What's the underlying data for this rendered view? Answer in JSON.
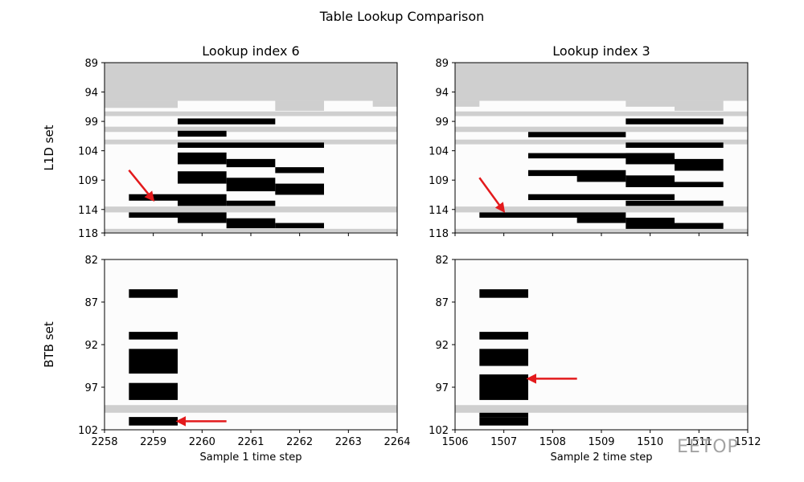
{
  "figure": {
    "title": "Table Lookup Comparison"
  },
  "watermark": {
    "text": "EETOP"
  },
  "chart_data": [
    {
      "type": "heatmap",
      "title": "Lookup index 6",
      "xlabel": "",
      "ylabel": "L1D set",
      "xlim": [
        2258,
        2264
      ],
      "ylim": [
        118,
        89
      ],
      "xticks": [
        2258,
        2259,
        2260,
        2261,
        2262,
        2263,
        2264
      ],
      "yticks": [
        89,
        94,
        99,
        104,
        109,
        114,
        118
      ],
      "gray_regions": [
        {
          "x0": 2258.0,
          "x1": 2264.0,
          "y0": 89.0,
          "y1": 95.5
        },
        {
          "x0": 2258.0,
          "x1": 2259.5,
          "y0": 95.5,
          "y1": 96.7
        },
        {
          "x0": 2261.5,
          "x1": 2262.5,
          "y0": 95.5,
          "y1": 97.2
        },
        {
          "x0": 2263.5,
          "x1": 2264.0,
          "y0": 95.5,
          "y1": 96.5
        },
        {
          "x0": 2258.0,
          "x1": 2264.0,
          "y0": 97.3,
          "y1": 98.1
        },
        {
          "x0": 2258.0,
          "x1": 2264.0,
          "y0": 99.9,
          "y1": 100.8
        },
        {
          "x0": 2258.0,
          "x1": 2264.0,
          "y0": 102.1,
          "y1": 102.9
        },
        {
          "x0": 2258.0,
          "x1": 2264.0,
          "y0": 113.5,
          "y1": 114.5
        },
        {
          "x0": 2258.0,
          "x1": 2264.0,
          "y0": 117.3,
          "y1": 117.9
        }
      ],
      "black_bars": [
        {
          "x0": 2259.5,
          "x1": 2261.5,
          "y0": 98.5,
          "y1": 99.5
        },
        {
          "x0": 2259.5,
          "x1": 2260.5,
          "y0": 100.6,
          "y1": 101.6
        },
        {
          "x0": 2259.5,
          "x1": 2262.5,
          "y0": 102.6,
          "y1": 103.5
        },
        {
          "x0": 2259.5,
          "x1": 2260.5,
          "y0": 104.3,
          "y1": 106.3
        },
        {
          "x0": 2260.5,
          "x1": 2261.5,
          "y0": 105.4,
          "y1": 106.8
        },
        {
          "x0": 2261.5,
          "x1": 2262.5,
          "y0": 106.8,
          "y1": 107.8
        },
        {
          "x0": 2259.5,
          "x1": 2260.5,
          "y0": 107.5,
          "y1": 109.6
        },
        {
          "x0": 2260.5,
          "x1": 2261.5,
          "y0": 108.6,
          "y1": 110.9
        },
        {
          "x0": 2261.5,
          "x1": 2262.5,
          "y0": 109.6,
          "y1": 111.5
        },
        {
          "x0": 2258.5,
          "x1": 2259.5,
          "y0": 111.4,
          "y1": 112.5
        },
        {
          "x0": 2259.5,
          "x1": 2260.5,
          "y0": 111.4,
          "y1": 113.4
        },
        {
          "x0": 2260.5,
          "x1": 2261.5,
          "y0": 112.5,
          "y1": 113.4
        },
        {
          "x0": 2258.5,
          "x1": 2259.5,
          "y0": 114.5,
          "y1": 115.4
        },
        {
          "x0": 2259.5,
          "x1": 2260.5,
          "y0": 114.5,
          "y1": 116.3
        },
        {
          "x0": 2260.5,
          "x1": 2261.5,
          "y0": 115.5,
          "y1": 117.2
        },
        {
          "x0": 2261.5,
          "x1": 2262.5,
          "y0": 116.3,
          "y1": 117.2
        }
      ],
      "annotations": [
        {
          "type": "arrow",
          "from": [
            2258.5,
            107.3
          ],
          "to": [
            2259.0,
            112.4
          ],
          "color": "#e31a1c"
        }
      ],
      "grid": false
    },
    {
      "type": "heatmap",
      "title": "Lookup index 3",
      "xlabel": "",
      "ylabel": "",
      "xlim": [
        1506,
        1512
      ],
      "ylim": [
        118,
        89
      ],
      "xticks": [
        1506,
        1507,
        1508,
        1509,
        1510,
        1511,
        1512
      ],
      "yticks": [
        89,
        94,
        99,
        104,
        109,
        114,
        118
      ],
      "gray_regions": [
        {
          "x0": 1506.0,
          "x1": 1512.0,
          "y0": 89.0,
          "y1": 95.5
        },
        {
          "x0": 1506.0,
          "x1": 1506.5,
          "y0": 95.5,
          "y1": 96.5
        },
        {
          "x0": 1509.5,
          "x1": 1510.5,
          "y0": 95.5,
          "y1": 96.5
        },
        {
          "x0": 1510.5,
          "x1": 1511.5,
          "y0": 95.5,
          "y1": 97.2
        },
        {
          "x0": 1506.0,
          "x1": 1512.0,
          "y0": 97.3,
          "y1": 98.1
        },
        {
          "x0": 1506.0,
          "x1": 1512.0,
          "y0": 99.9,
          "y1": 100.8
        },
        {
          "x0": 1506.0,
          "x1": 1512.0,
          "y0": 102.1,
          "y1": 102.9
        },
        {
          "x0": 1506.0,
          "x1": 1512.0,
          "y0": 113.5,
          "y1": 114.5
        },
        {
          "x0": 1506.0,
          "x1": 1512.0,
          "y0": 117.3,
          "y1": 117.9
        }
      ],
      "black_bars": [
        {
          "x0": 1509.5,
          "x1": 1511.5,
          "y0": 98.5,
          "y1": 99.5
        },
        {
          "x0": 1507.5,
          "x1": 1509.5,
          "y0": 100.8,
          "y1": 101.7
        },
        {
          "x0": 1509.5,
          "x1": 1511.5,
          "y0": 102.6,
          "y1": 103.5
        },
        {
          "x0": 1507.5,
          "x1": 1510.5,
          "y0": 104.4,
          "y1": 105.3
        },
        {
          "x0": 1509.5,
          "x1": 1510.5,
          "y0": 104.4,
          "y1": 106.3
        },
        {
          "x0": 1510.5,
          "x1": 1511.5,
          "y0": 105.4,
          "y1": 107.4
        },
        {
          "x0": 1507.5,
          "x1": 1509.5,
          "y0": 107.3,
          "y1": 108.3
        },
        {
          "x0": 1508.5,
          "x1": 1509.5,
          "y0": 108.2,
          "y1": 109.3
        },
        {
          "x0": 1509.5,
          "x1": 1510.5,
          "y0": 108.2,
          "y1": 110.2
        },
        {
          "x0": 1510.5,
          "x1": 1511.5,
          "y0": 109.3,
          "y1": 110.2
        },
        {
          "x0": 1507.5,
          "x1": 1510.5,
          "y0": 111.4,
          "y1": 112.4
        },
        {
          "x0": 1509.5,
          "x1": 1511.5,
          "y0": 112.5,
          "y1": 113.4
        },
        {
          "x0": 1506.5,
          "x1": 1509.5,
          "y0": 114.5,
          "y1": 115.4
        },
        {
          "x0": 1508.5,
          "x1": 1509.5,
          "y0": 115.4,
          "y1": 116.3
        },
        {
          "x0": 1509.5,
          "x1": 1510.5,
          "y0": 115.4,
          "y1": 117.3
        },
        {
          "x0": 1510.5,
          "x1": 1511.5,
          "y0": 116.3,
          "y1": 117.3
        }
      ],
      "annotations": [
        {
          "type": "arrow",
          "from": [
            1506.5,
            108.6
          ],
          "to": [
            1507.0,
            114.3
          ],
          "color": "#e31a1c"
        }
      ],
      "grid": false
    },
    {
      "type": "heatmap",
      "title": "",
      "xlabel": "Sample 1 time step",
      "ylabel": "BTB set",
      "xlim": [
        2258,
        2264
      ],
      "ylim": [
        102,
        82
      ],
      "xticks": [
        2258,
        2259,
        2260,
        2261,
        2262,
        2263,
        2264
      ],
      "yticks": [
        82,
        87,
        92,
        97,
        102
      ],
      "gray_regions": [
        {
          "x0": 2258.0,
          "x1": 2264.0,
          "y0": 99.1,
          "y1": 100.0
        }
      ],
      "black_bars": [
        {
          "x0": 2258.5,
          "x1": 2259.5,
          "y0": 85.5,
          "y1": 86.5
        },
        {
          "x0": 2258.5,
          "x1": 2259.5,
          "y0": 90.5,
          "y1": 91.4
        },
        {
          "x0": 2258.5,
          "x1": 2259.5,
          "y0": 92.5,
          "y1": 95.4
        },
        {
          "x0": 2258.5,
          "x1": 2259.5,
          "y0": 96.5,
          "y1": 98.5
        },
        {
          "x0": 2258.5,
          "x1": 2259.5,
          "y0": 100.5,
          "y1": 101.5
        }
      ],
      "annotations": [
        {
          "type": "arrow",
          "from": [
            2260.5,
            101.0
          ],
          "to": [
            2259.5,
            101.0
          ],
          "color": "#e31a1c"
        }
      ],
      "grid": false
    },
    {
      "type": "heatmap",
      "title": "",
      "xlabel": "Sample 2 time step",
      "ylabel": "",
      "xlim": [
        1506,
        1512
      ],
      "ylim": [
        102,
        82
      ],
      "xticks": [
        1506,
        1507,
        1508,
        1509,
        1510,
        1511,
        1512
      ],
      "yticks": [
        82,
        87,
        92,
        97,
        102
      ],
      "gray_regions": [
        {
          "x0": 1506.0,
          "x1": 1512.0,
          "y0": 99.1,
          "y1": 100.0
        }
      ],
      "black_bars": [
        {
          "x0": 1506.5,
          "x1": 1507.5,
          "y0": 85.5,
          "y1": 86.5
        },
        {
          "x0": 1506.5,
          "x1": 1507.5,
          "y0": 90.5,
          "y1": 91.4
        },
        {
          "x0": 1506.5,
          "x1": 1507.5,
          "y0": 92.5,
          "y1": 94.5
        },
        {
          "x0": 1506.5,
          "x1": 1507.5,
          "y0": 95.5,
          "y1": 98.5
        },
        {
          "x0": 1506.5,
          "x1": 1507.5,
          "y0": 100.0,
          "y1": 100.5
        },
        {
          "x0": 1506.5,
          "x1": 1507.5,
          "y0": 100.5,
          "y1": 101.5
        }
      ],
      "annotations": [
        {
          "type": "arrow",
          "from": [
            1508.5,
            96.0
          ],
          "to": [
            1507.5,
            96.0
          ],
          "color": "#e31a1c"
        }
      ],
      "grid": false
    }
  ]
}
